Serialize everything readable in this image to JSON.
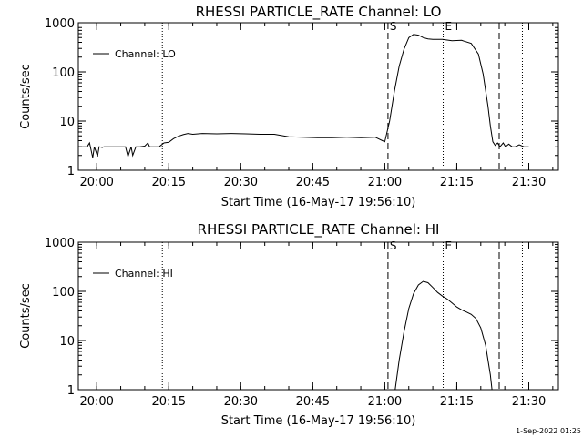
{
  "chart_data": [
    {
      "type": "line",
      "title": "RHESSI PARTICLE_RATE Channel: LO",
      "xlabel": "Start Time (16-May-17 19:56:10)",
      "ylabel": "Counts/sec",
      "yscale": "log",
      "ylim": [
        1,
        1000
      ],
      "xlim": [
        "19:56:10",
        "21:36:10"
      ],
      "xticks": [
        "20:00",
        "20:15",
        "20:30",
        "20:45",
        "21:00",
        "21:15",
        "21:30"
      ],
      "yticks": [
        "1",
        "10",
        "100",
        "1000"
      ],
      "legend": {
        "placement": "top-left",
        "label": "Channel: LO"
      },
      "grid": false,
      "markers": [
        {
          "time": "20:13:40",
          "style": "dotted",
          "label": ""
        },
        {
          "time": "21:00:40",
          "style": "dashed",
          "label": "S"
        },
        {
          "time": "21:12:10",
          "style": "dotted",
          "label": "E"
        },
        {
          "time": "21:23:50",
          "style": "dashed",
          "label": ""
        },
        {
          "time": "21:28:40",
          "style": "dotted",
          "label": ""
        }
      ],
      "series": [
        {
          "x": [
            "19:56:10",
            "19:58:00",
            "19:58:30",
            "19:59:10",
            "19:59:30",
            "20:00:10",
            "20:00:30",
            "20:01:10",
            "20:01:30",
            "20:02:00",
            "20:03:00",
            "20:04:00",
            "20:05:00",
            "20:06:00",
            "20:06:30",
            "20:07:10",
            "20:07:30",
            "20:08:10",
            "20:08:40",
            "20:09:00",
            "20:10:00",
            "20:10:40",
            "20:11:00",
            "20:12:00",
            "20:13:00",
            "20:14:00",
            "20:15:00",
            "20:16:00",
            "20:17:00",
            "20:18:00",
            "20:19:00",
            "20:20:00",
            "20:22:00",
            "20:25:00",
            "20:28:00",
            "20:31:00",
            "20:34:00",
            "20:37:00",
            "20:40:00",
            "20:43:00",
            "20:46:00",
            "20:49:00",
            "20:52:00",
            "20:55:00",
            "20:58:00",
            "20:59:30",
            "21:00:00",
            "21:01:00",
            "21:02:00",
            "21:03:00",
            "21:04:00",
            "21:05:00",
            "21:06:00",
            "21:07:00",
            "21:08:00",
            "21:09:00",
            "21:10:00",
            "21:12:00",
            "21:14:00",
            "21:16:00",
            "21:18:00",
            "21:19:30",
            "21:20:30",
            "21:21:30",
            "21:22:00",
            "21:22:30",
            "21:23:00",
            "21:23:30",
            "21:24:00",
            "21:24:40",
            "21:25:10",
            "21:25:50",
            "21:26:30",
            "21:27:10",
            "21:28:00",
            "21:29:00",
            "21:30:00"
          ],
          "y": [
            3.0,
            3.0,
            3.6,
            1.8,
            3.0,
            1.9,
            3.0,
            2.9,
            3.0,
            3.0,
            3.0,
            3.0,
            3.0,
            3.0,
            1.9,
            3.0,
            2.0,
            3.0,
            3.0,
            3.0,
            3.1,
            3.6,
            3.0,
            3.0,
            3.0,
            3.6,
            3.7,
            4.4,
            4.9,
            5.3,
            5.6,
            5.4,
            5.6,
            5.5,
            5.6,
            5.5,
            5.4,
            5.4,
            4.8,
            4.7,
            4.6,
            4.6,
            4.7,
            4.6,
            4.7,
            4.0,
            3.8,
            10.0,
            40.0,
            130.0,
            290.0,
            500.0,
            580.0,
            560.0,
            500.0,
            470.0,
            460.0,
            460.0,
            430.0,
            440.0,
            380.0,
            230.0,
            90.0,
            20.0,
            8.0,
            3.8,
            3.2,
            3.6,
            3.0,
            3.6,
            3.0,
            3.4,
            3.0,
            3.0,
            3.3,
            3.0,
            3.0
          ]
        }
      ]
    },
    {
      "type": "line",
      "title": "RHESSI PARTICLE_RATE Channel: HI",
      "xlabel": "Start Time (16-May-17 19:56:10)",
      "ylabel": "Counts/sec",
      "yscale": "log",
      "ylim": [
        1,
        1000
      ],
      "xlim": [
        "19:56:10",
        "21:36:10"
      ],
      "xticks": [
        "20:00",
        "20:15",
        "20:30",
        "20:45",
        "21:00",
        "21:15",
        "21:30"
      ],
      "yticks": [
        "1",
        "10",
        "100",
        "1000"
      ],
      "legend": {
        "placement": "top-left",
        "label": "Channel: HI"
      },
      "grid": false,
      "markers": [
        {
          "time": "20:13:40",
          "style": "dotted",
          "label": ""
        },
        {
          "time": "21:00:40",
          "style": "dashed",
          "label": "S"
        },
        {
          "time": "21:12:10",
          "style": "dotted",
          "label": "E"
        },
        {
          "time": "21:23:50",
          "style": "dashed",
          "label": ""
        },
        {
          "time": "21:28:40",
          "style": "dotted",
          "label": ""
        }
      ],
      "series": [
        {
          "x": [
            "21:02:10",
            "21:03:00",
            "21:04:00",
            "21:05:00",
            "21:06:00",
            "21:07:00",
            "21:08:00",
            "21:09:00",
            "21:10:00",
            "21:11:00",
            "21:12:00",
            "21:13:00",
            "21:14:00",
            "21:15:00",
            "21:16:00",
            "21:17:00",
            "21:18:00",
            "21:19:00",
            "21:20:00",
            "21:21:00",
            "21:21:30",
            "21:22:00",
            "21:22:20"
          ],
          "y": [
            1.0,
            4.0,
            15.0,
            45.0,
            90.0,
            135.0,
            160.0,
            150.0,
            120.0,
            95.0,
            80.0,
            70.0,
            58.0,
            48.0,
            42.0,
            38.0,
            34.0,
            28.0,
            18.0,
            8.0,
            4.0,
            2.0,
            1.0
          ]
        }
      ]
    }
  ],
  "footer": {
    "date_stamp": "1-Sep-2022 01:25"
  }
}
